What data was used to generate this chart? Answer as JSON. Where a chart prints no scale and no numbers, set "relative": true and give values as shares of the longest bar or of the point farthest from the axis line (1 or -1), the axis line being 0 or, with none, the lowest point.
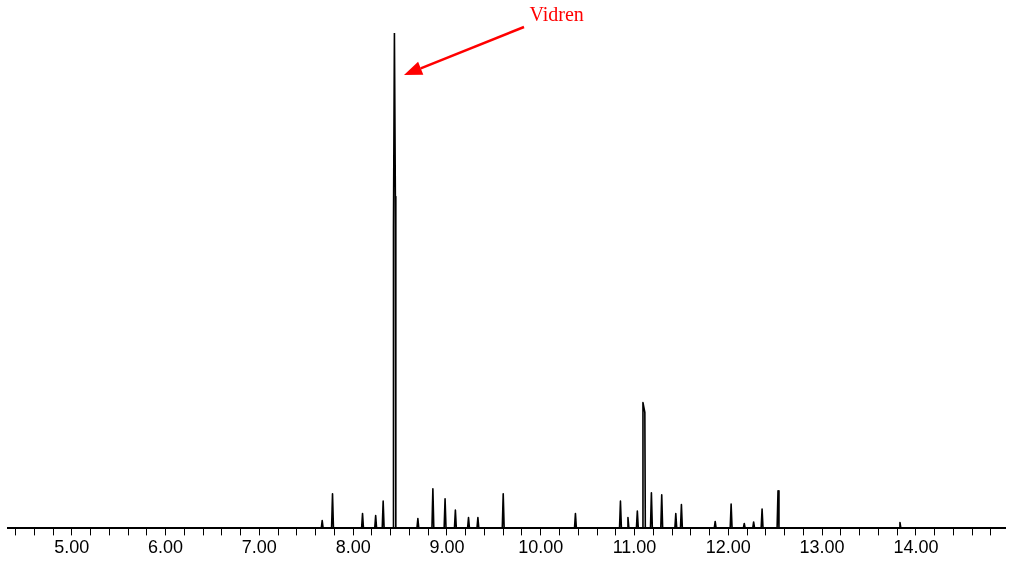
{
  "chart_data": {
    "type": "line",
    "relative": true,
    "color": "#000000",
    "marker": "none",
    "grid": false,
    "legend": false,
    "x": [
      4.32,
      7.66,
      7.67,
      7.68,
      7.77,
      7.78,
      7.79,
      8.09,
      8.1,
      8.11,
      8.23,
      8.24,
      8.25,
      8.31,
      8.32,
      8.33,
      8.425,
      8.43,
      8.44,
      8.45,
      8.455,
      8.68,
      8.69,
      8.7,
      8.84,
      8.85,
      8.86,
      8.97,
      8.98,
      8.99,
      9.08,
      9.09,
      9.1,
      9.22,
      9.23,
      9.24,
      9.32,
      9.33,
      9.34,
      9.59,
      9.6,
      9.61,
      10.36,
      10.37,
      10.38,
      10.84,
      10.85,
      10.86,
      10.92,
      10.93,
      10.94,
      11.02,
      11.03,
      11.04,
      11.085,
      11.09,
      11.11,
      11.115,
      11.17,
      11.18,
      11.19,
      11.28,
      11.29,
      11.3,
      11.43,
      11.44,
      11.45,
      11.49,
      11.5,
      11.51,
      11.85,
      11.86,
      11.87,
      12.02,
      12.03,
      12.04,
      12.16,
      12.17,
      12.18,
      12.26,
      12.27,
      12.28,
      12.35,
      12.36,
      12.37,
      12.52,
      12.53,
      12.54,
      13.82,
      13.83,
      13.84,
      14.95
    ],
    "values": [
      0,
      0,
      0.016,
      0,
      0,
      0.07,
      0,
      0,
      0.03,
      0,
      0,
      0.026,
      0,
      0,
      0.055,
      0,
      0,
      0.61,
      1,
      0.67,
      0,
      0,
      0.02,
      0,
      0,
      0.08,
      0,
      0,
      0.06,
      0,
      0,
      0.037,
      0,
      0,
      0.022,
      0,
      0,
      0.022,
      0,
      0,
      0.07,
      0,
      0,
      0.03,
      0,
      0,
      0.055,
      0,
      0,
      0.022,
      0,
      0,
      0.035,
      0,
      0,
      0.254,
      0.234,
      0,
      0,
      0.072,
      0,
      0,
      0.068,
      0,
      0,
      0.03,
      0,
      0,
      0.048,
      0,
      0,
      0.014,
      0,
      0,
      0.049,
      0,
      0,
      0.01,
      0,
      0,
      0.013,
      0,
      0,
      0.039,
      0,
      0,
      0.076,
      0,
      0,
      0.012,
      0,
      0
    ],
    "xlim": [
      4.32,
      14.95
    ],
    "xticks": [
      {
        "value": 4.4,
        "label": null
      },
      {
        "value": 4.6,
        "label": null
      },
      {
        "value": 4.8,
        "label": null
      },
      {
        "value": 5,
        "label": "5.00"
      },
      {
        "value": 5.2,
        "label": null
      },
      {
        "value": 5.4,
        "label": null
      },
      {
        "value": 5.6,
        "label": null
      },
      {
        "value": 5.8,
        "label": null
      },
      {
        "value": 6,
        "label": "6.00"
      },
      {
        "value": 6.2,
        "label": null
      },
      {
        "value": 6.4,
        "label": null
      },
      {
        "value": 6.6,
        "label": null
      },
      {
        "value": 6.8,
        "label": null
      },
      {
        "value": 7,
        "label": "7.00"
      },
      {
        "value": 7.2,
        "label": null
      },
      {
        "value": 7.4,
        "label": null
      },
      {
        "value": 7.6,
        "label": null
      },
      {
        "value": 7.8,
        "label": null
      },
      {
        "value": 8,
        "label": "8.00"
      },
      {
        "value": 8.2,
        "label": null
      },
      {
        "value": 8.4,
        "label": null
      },
      {
        "value": 8.6,
        "label": null
      },
      {
        "value": 8.8,
        "label": null
      },
      {
        "value": 9,
        "label": "9.00"
      },
      {
        "value": 9.2,
        "label": null
      },
      {
        "value": 9.4,
        "label": null
      },
      {
        "value": 9.6,
        "label": null
      },
      {
        "value": 9.8,
        "label": null
      },
      {
        "value": 10,
        "label": "10.00"
      },
      {
        "value": 10.2,
        "label": null
      },
      {
        "value": 10.4,
        "label": null
      },
      {
        "value": 10.6,
        "label": null
      },
      {
        "value": 10.8,
        "label": null
      },
      {
        "value": 11,
        "label": "11.00"
      },
      {
        "value": 11.2,
        "label": null
      },
      {
        "value": 11.4,
        "label": null
      },
      {
        "value": 11.6,
        "label": null
      },
      {
        "value": 11.8,
        "label": null
      },
      {
        "value": 12,
        "label": "12.00"
      },
      {
        "value": 12.2,
        "label": null
      },
      {
        "value": 12.4,
        "label": null
      },
      {
        "value": 12.6,
        "label": null
      },
      {
        "value": 12.8,
        "label": null
      },
      {
        "value": 13,
        "label": "13.00"
      },
      {
        "value": 13.2,
        "label": null
      },
      {
        "value": 13.4,
        "label": null
      },
      {
        "value": 13.6,
        "label": null
      },
      {
        "value": 13.8,
        "label": null
      },
      {
        "value": 14,
        "label": "14.00"
      },
      {
        "value": 14.2,
        "label": null
      },
      {
        "value": 14.4,
        "label": null
      },
      {
        "value": 14.6,
        "label": null
      },
      {
        "value": 14.8,
        "label": null
      }
    ],
    "annotations": [
      "Vidren"
    ]
  }
}
